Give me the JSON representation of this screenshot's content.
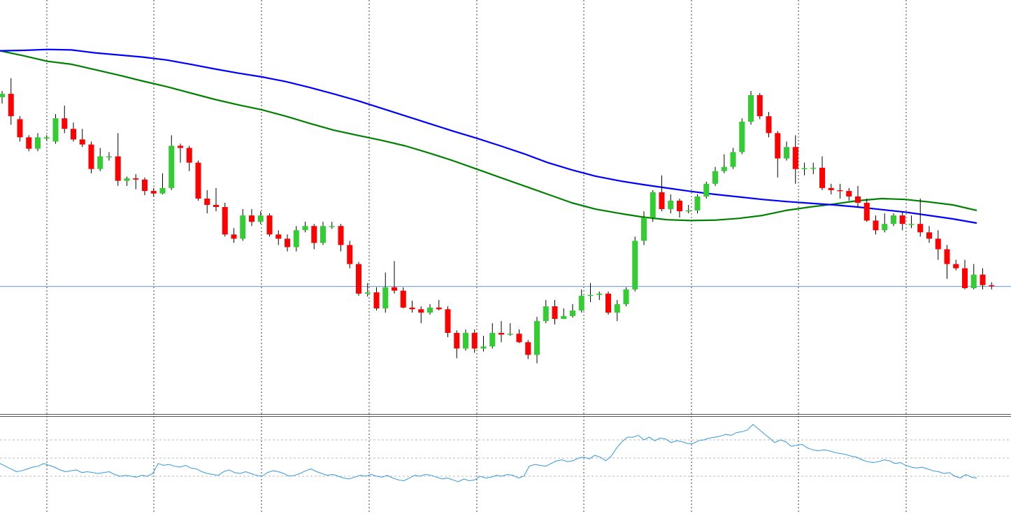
{
  "chart_data": {
    "type": "candlestick",
    "title": "",
    "grid": true,
    "colors": {
      "bull": "#33cc33",
      "bear": "#ff0000",
      "wick": "#000000",
      "ma_fast": "#008000",
      "ma_slow": "#0000ff",
      "price_line": "#6495ed",
      "oscillator": "#3399dd",
      "grid": "#000000"
    },
    "price_range": [
      0,
      100
    ],
    "current_price": 30.2,
    "candles": [
      [
        75,
        75.8,
        76.5,
        73.5
      ],
      [
        75.8,
        70.5,
        79.5,
        68.5
      ],
      [
        69.8,
        65.5,
        70.5,
        64.5
      ],
      [
        65.5,
        62.8,
        66,
        62.2
      ],
      [
        62.8,
        65.5,
        66.5,
        62.2
      ],
      [
        65.2,
        65.5,
        66,
        64.8
      ],
      [
        64.5,
        70,
        71,
        64
      ],
      [
        70,
        67.5,
        73,
        66.5
      ],
      [
        67.5,
        65,
        69,
        64.5
      ],
      [
        65,
        63.8,
        67.5,
        63.2
      ],
      [
        63.8,
        58,
        64.5,
        57
      ],
      [
        58,
        61,
        63,
        57.5
      ],
      [
        61,
        61,
        62,
        60
      ],
      [
        61,
        55.2,
        66.5,
        54
      ],
      [
        55.2,
        55.8,
        56.2,
        54
      ],
      [
        55.8,
        55.5,
        56.8,
        53.2
      ],
      [
        55.5,
        52.8,
        56,
        51.8
      ],
      [
        52.8,
        52.2,
        53.5,
        51.5
      ],
      [
        52.2,
        53.5,
        57,
        52
      ],
      [
        53.5,
        63.5,
        66,
        53
      ],
      [
        63.5,
        63,
        64,
        59.5
      ],
      [
        63,
        59.5,
        63.5,
        57.5
      ],
      [
        59.5,
        51,
        60,
        50.5
      ],
      [
        51,
        49.5,
        53,
        47.5
      ],
      [
        49.5,
        49,
        53.5,
        48
      ],
      [
        49,
        42.5,
        50,
        42
      ],
      [
        42.5,
        41.5,
        44,
        40.5
      ],
      [
        41.5,
        47,
        48.5,
        41
      ],
      [
        47,
        45.5,
        48.5,
        44.5
      ],
      [
        45.5,
        47,
        48,
        45
      ],
      [
        47,
        42.5,
        47.5,
        42
      ],
      [
        42.5,
        41.5,
        43.5,
        40
      ],
      [
        41.5,
        39.5,
        42.5,
        38.5
      ],
      [
        39.5,
        43.5,
        44.5,
        38.5
      ],
      [
        43.5,
        44.5,
        45.5,
        43
      ],
      [
        44.5,
        40.5,
        45,
        39
      ],
      [
        40.5,
        44.5,
        45.5,
        40
      ],
      [
        44.5,
        44.5,
        45.5,
        43.8
      ],
      [
        44.5,
        40,
        45,
        38.5
      ],
      [
        40,
        35.5,
        41,
        34.5
      ],
      [
        35.5,
        28.5,
        36,
        28
      ],
      [
        28.5,
        28.8,
        31,
        27.8
      ],
      [
        28.8,
        25,
        30,
        24.5
      ],
      [
        25,
        30,
        33.5,
        24
      ],
      [
        30,
        29.2,
        36.2,
        28.5
      ],
      [
        29.2,
        25.2,
        30,
        25
      ],
      [
        25.2,
        24.8,
        26.8,
        24
      ],
      [
        24.8,
        24,
        25.5,
        21.5
      ],
      [
        24,
        25.2,
        26,
        23.5
      ],
      [
        25.2,
        24.8,
        27,
        24.5
      ],
      [
        24.8,
        19.2,
        25.5,
        18.2
      ],
      [
        19.2,
        15.5,
        19.8,
        13.2
      ],
      [
        15.5,
        19.2,
        20,
        15
      ],
      [
        19.2,
        15.5,
        20,
        14.5
      ],
      [
        15.5,
        16,
        18.5,
        14.8
      ],
      [
        16,
        19.2,
        21.5,
        15.5
      ],
      [
        19.2,
        18.8,
        22,
        17
      ],
      [
        18.8,
        19,
        21.5,
        18.5
      ],
      [
        19,
        17,
        20,
        16.8
      ],
      [
        17,
        14,
        17.5,
        13
      ],
      [
        14,
        22,
        23,
        12
      ],
      [
        22,
        25.5,
        27,
        21.5
      ],
      [
        25.5,
        22.5,
        27,
        21.2
      ],
      [
        22.5,
        23.2,
        25,
        22.5
      ],
      [
        23.2,
        24.5,
        26,
        22.8
      ],
      [
        24.5,
        28,
        29.5,
        24
      ],
      [
        28,
        28.2,
        31,
        26.5
      ],
      [
        28.2,
        28.5,
        29,
        27
      ],
      [
        28.5,
        24,
        29,
        23.5
      ],
      [
        24,
        26,
        27,
        22
      ],
      [
        26,
        29.5,
        30,
        25.5
      ],
      [
        29.5,
        41,
        42,
        29
      ],
      [
        41,
        46.5,
        48,
        40
      ],
      [
        46.5,
        52.5,
        53,
        45.5
      ],
      [
        52.5,
        48.5,
        56.5,
        48
      ],
      [
        48.5,
        50.5,
        52,
        47.5
      ],
      [
        50.5,
        48,
        51,
        46.5
      ],
      [
        48,
        48.2,
        49.5,
        47.5
      ],
      [
        48.2,
        51.5,
        52,
        47.5
      ],
      [
        51.5,
        54.5,
        55,
        51
      ],
      [
        54.5,
        57.5,
        58.5,
        54
      ],
      [
        57.5,
        58.5,
        61.5,
        57
      ],
      [
        58.5,
        62,
        63,
        58
      ],
      [
        62,
        69.2,
        70,
        61.5
      ],
      [
        69.2,
        75.5,
        76.5,
        68.5
      ],
      [
        75.5,
        70.5,
        76,
        69.8
      ],
      [
        70.5,
        66.5,
        71.5,
        65.5
      ],
      [
        66.5,
        60.5,
        67,
        56
      ],
      [
        60.5,
        63.2,
        64.5,
        60
      ],
      [
        63.2,
        58,
        66,
        54.5
      ],
      [
        58,
        58.2,
        59.5,
        56.5
      ],
      [
        58.2,
        58.3,
        59.5,
        56.8
      ],
      [
        58.3,
        53.5,
        61,
        53
      ],
      [
        53.5,
        53,
        54.5,
        52
      ],
      [
        53,
        52.8,
        54.5,
        51
      ],
      [
        52.8,
        51.5,
        53.5,
        50.5
      ],
      [
        51.5,
        50,
        54,
        49
      ],
      [
        50,
        45.8,
        51,
        45.5
      ],
      [
        45.8,
        43.5,
        47,
        42.5
      ],
      [
        43.5,
        45,
        47.5,
        43
      ],
      [
        45,
        47,
        47.5,
        44.5
      ],
      [
        47,
        45,
        48,
        43.5
      ],
      [
        45,
        45,
        47,
        44
      ],
      [
        45,
        43,
        51,
        42
      ],
      [
        43,
        41.5,
        44.5,
        40.5
      ],
      [
        41.5,
        39,
        43.5,
        36.5
      ],
      [
        39,
        35.5,
        40,
        32
      ],
      [
        35.5,
        34.5,
        36.5,
        34
      ],
      [
        34.5,
        29.8,
        36.5,
        29.5
      ],
      [
        29.8,
        33,
        35.5,
        29.5
      ],
      [
        33,
        30.5,
        34.5,
        29.5
      ],
      [
        30.5,
        30.3,
        31.2,
        29.5
      ]
    ],
    "ma_fast": [
      86,
      84.8,
      83.5,
      82.8,
      81.5,
      80.2,
      78.8,
      77.5,
      76,
      74.5,
      73.2,
      72,
      70.5,
      68.8,
      67.2,
      66,
      64.8,
      63.5,
      61.8,
      60,
      58,
      56,
      54,
      52,
      50,
      48.5,
      47.5,
      46.6,
      46,
      45.8,
      45.9,
      46.3,
      47,
      48.2,
      49,
      49.7,
      50.5,
      51,
      50.8,
      50.2,
      49.5,
      48.2
    ],
    "ma_slow": [
      86,
      86.1,
      86.3,
      86.2,
      85.5,
      85,
      84.5,
      83.8,
      82.8,
      81.7,
      80.7,
      79.8,
      78.7,
      77.3,
      75.8,
      74.2,
      72.4,
      70.6,
      68.8,
      67,
      65.3,
      63.5,
      61.6,
      59.5,
      57.8,
      56.3,
      55.2,
      54.3,
      53.5,
      52.7,
      52,
      51.4,
      50.8,
      50.3,
      49.9,
      49.5,
      49,
      48.4,
      47.8,
      47,
      46.2,
      45.2
    ],
    "oscillator": {
      "range": [
        0,
        100
      ],
      "levels": [
        70,
        50,
        30
      ],
      "values": [
        44,
        41,
        38,
        35,
        36,
        38,
        40,
        41,
        44,
        42,
        40,
        37,
        35,
        36,
        37,
        34,
        35,
        34,
        33,
        34,
        35,
        32,
        30,
        31,
        30,
        29,
        31,
        30,
        33,
        44,
        42,
        43,
        41,
        40,
        42,
        39,
        38,
        35,
        33,
        32,
        31,
        35,
        37,
        34,
        33,
        35,
        33,
        31,
        30,
        34,
        36,
        35,
        33,
        30,
        31,
        33,
        36,
        38,
        35,
        33,
        31,
        32,
        30,
        28,
        27,
        29,
        31,
        30,
        32,
        30,
        29,
        31,
        28,
        26,
        25,
        28,
        31,
        30,
        32,
        31,
        29,
        27,
        28,
        26,
        24,
        27,
        25,
        26,
        30,
        28,
        29,
        31,
        30,
        32,
        31,
        28,
        30,
        41,
        43,
        42,
        41,
        44,
        47,
        48,
        46,
        47,
        50,
        51,
        49,
        53,
        51,
        47,
        52,
        61,
        68,
        73,
        73,
        75,
        70,
        73,
        69,
        72,
        71,
        67,
        69,
        68,
        66,
        66,
        69,
        70,
        72,
        73,
        74,
        76,
        75,
        78,
        79,
        81,
        87,
        82,
        77,
        72,
        67,
        70,
        68,
        63,
        64,
        65,
        61,
        59,
        58,
        59,
        58,
        56,
        55,
        54,
        52,
        51,
        48,
        46,
        45,
        46,
        48,
        47,
        44,
        45,
        42,
        40,
        39,
        40,
        38,
        36,
        35,
        33,
        34,
        30,
        28,
        32,
        29,
        28
      ]
    }
  }
}
